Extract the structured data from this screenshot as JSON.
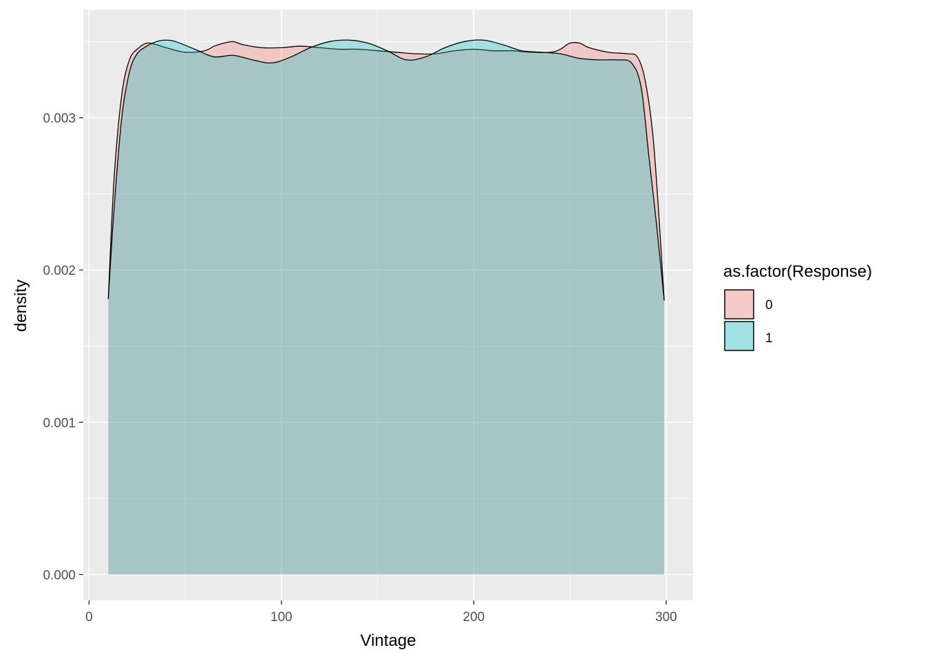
{
  "chart_data": {
    "type": "area",
    "xlabel": "Vintage",
    "ylabel": "density",
    "xlim": [
      -3,
      314
    ],
    "ylim": [
      -0.00017,
      0.00371
    ],
    "x_ticks": [
      0,
      100,
      200,
      300
    ],
    "x_tick_labels": [
      "0",
      "100",
      "200",
      "300"
    ],
    "y_ticks": [
      0.0,
      0.001,
      0.002,
      0.003
    ],
    "y_tick_labels": [
      "0.000",
      "0.001",
      "0.002",
      "0.003"
    ],
    "grid": true,
    "legend": {
      "title": "as.factor(Response)",
      "position": "right",
      "entries": [
        {
          "label": "0",
          "color": "#F8766D"
        },
        {
          "label": "1",
          "color": "#00BFC4"
        }
      ]
    },
    "series": [
      {
        "name": "0",
        "color": "#F8766D",
        "x": [
          10,
          13,
          17,
          21,
          25,
          30,
          35,
          40,
          50,
          60,
          65,
          70,
          75,
          80,
          90,
          100,
          110,
          120,
          130,
          140,
          150,
          160,
          170,
          180,
          190,
          200,
          210,
          220,
          230,
          240,
          245,
          250,
          255,
          260,
          270,
          280,
          285,
          289,
          293,
          296,
          299
        ],
        "values": [
          0.00181,
          0.0026,
          0.00315,
          0.00338,
          0.00345,
          0.00349,
          0.00348,
          0.00346,
          0.00343,
          0.00344,
          0.00347,
          0.00349,
          0.0035,
          0.00348,
          0.00346,
          0.00346,
          0.00347,
          0.00346,
          0.00345,
          0.00345,
          0.00344,
          0.00343,
          0.00342,
          0.00342,
          0.00344,
          0.00345,
          0.00344,
          0.00344,
          0.00343,
          0.00343,
          0.00345,
          0.00349,
          0.00349,
          0.00346,
          0.00343,
          0.00342,
          0.0034,
          0.00325,
          0.0029,
          0.0024,
          0.0018
        ]
      },
      {
        "name": "1",
        "color": "#00BFC4",
        "x": [
          10,
          13,
          17,
          21,
          25,
          30,
          35,
          40,
          45,
          55,
          65,
          75,
          85,
          95,
          105,
          115,
          125,
          135,
          145,
          155,
          165,
          175,
          185,
          195,
          205,
          215,
          225,
          235,
          245,
          255,
          265,
          275,
          282,
          287,
          291,
          295,
          299
        ],
        "values": [
          0.00181,
          0.0024,
          0.003,
          0.0033,
          0.00342,
          0.00347,
          0.0035,
          0.00351,
          0.0035,
          0.00345,
          0.0034,
          0.00341,
          0.00338,
          0.00336,
          0.0034,
          0.00346,
          0.0035,
          0.00351,
          0.00349,
          0.00344,
          0.00338,
          0.0034,
          0.00346,
          0.0035,
          0.00351,
          0.00348,
          0.00344,
          0.00343,
          0.00342,
          0.00339,
          0.00338,
          0.00338,
          0.00336,
          0.0032,
          0.00275,
          0.0023,
          0.0018
        ]
      }
    ]
  }
}
